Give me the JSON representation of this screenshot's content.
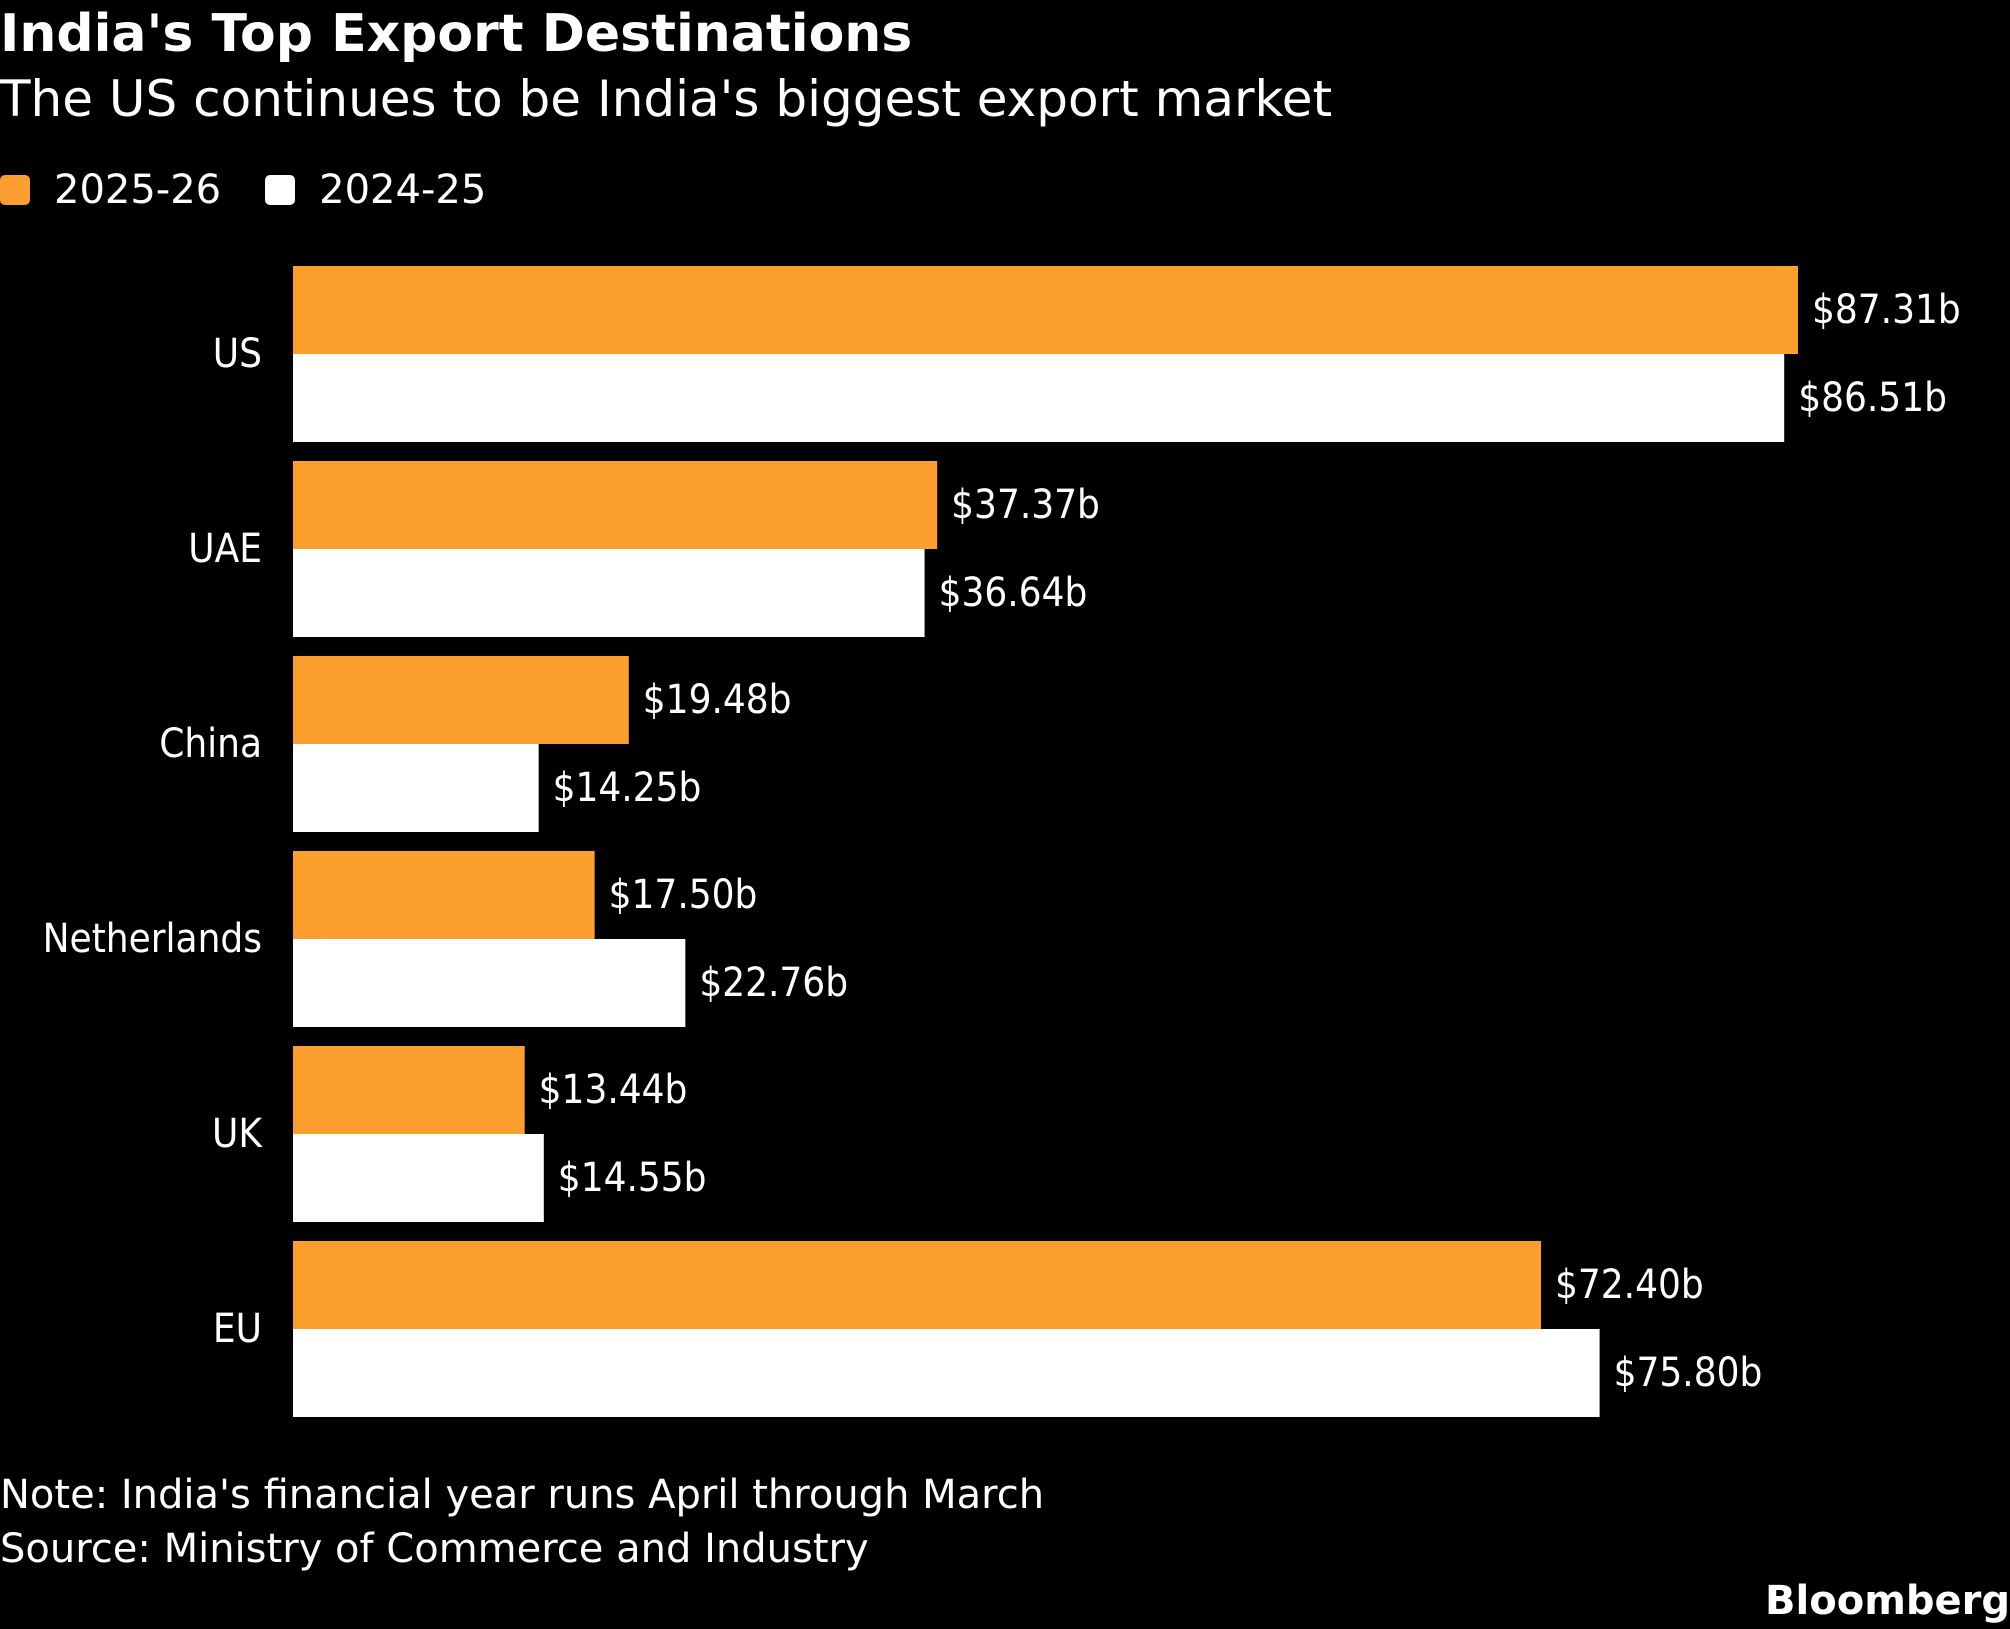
{
  "title": "India's Top Export Destinations",
  "subtitle": "The US continues to be India's biggest export market",
  "legend": [
    {
      "label": "2025-26",
      "color": "#fd9f2e"
    },
    {
      "label": "2024-25",
      "color": "#ffffff"
    }
  ],
  "note": "Note: India's financial year runs April through March",
  "source": "Source: Ministry of Commerce and Industry",
  "brand": "Bloomberg",
  "chart_data": {
    "type": "bar",
    "orientation": "horizontal",
    "categories": [
      "US",
      "UAE",
      "China",
      "Netherlands",
      "UK",
      "EU"
    ],
    "series": [
      {
        "name": "2025-26",
        "color": "#fd9f2e",
        "values": [
          87.31,
          37.37,
          19.48,
          17.5,
          13.44,
          72.4
        ],
        "labels": [
          "$87.31b",
          "$37.37b",
          "$19.48b",
          "$17.50b",
          "$13.44b",
          "$72.40b"
        ]
      },
      {
        "name": "2024-25",
        "color": "#ffffff",
        "values": [
          86.51,
          36.64,
          14.25,
          22.76,
          14.55,
          75.8
        ],
        "labels": [
          "$86.51b",
          "$36.64b",
          "$14.25b",
          "$22.76b",
          "$14.55b",
          "$75.80b"
        ]
      }
    ],
    "title": "India's Top Export Destinations",
    "grid": false,
    "legend_position": "top-left"
  }
}
